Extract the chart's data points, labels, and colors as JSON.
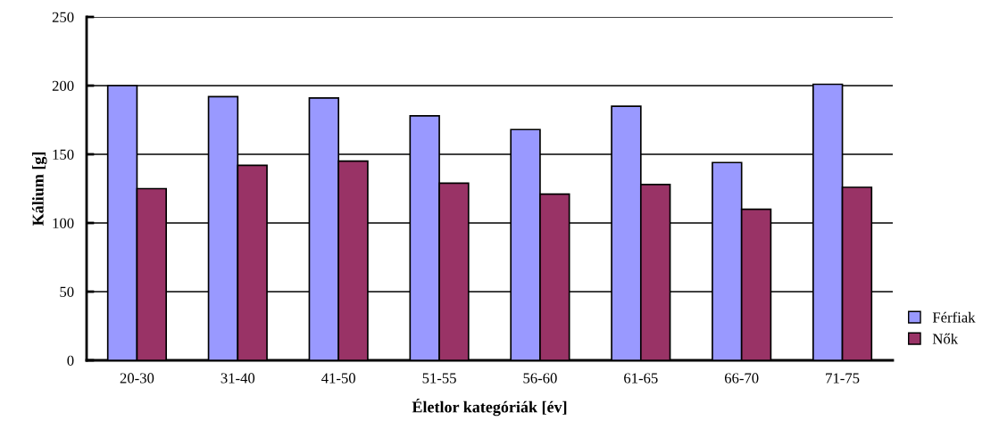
{
  "chart_data": {
    "type": "bar",
    "xlabel": "Életlor kategóriák [év]",
    "ylabel": "Kálium [g]",
    "categories": [
      "20-30",
      "31-40",
      "41-50",
      "51-55",
      "56-60",
      "61-65",
      "66-70",
      "71-75"
    ],
    "series": [
      {
        "name": "Férfiak",
        "color": "#9999ff",
        "values": [
          200,
          192,
          191,
          178,
          168,
          185,
          144,
          201
        ]
      },
      {
        "name": "Nők",
        "color": "#993366",
        "values": [
          125,
          142,
          145,
          129,
          121,
          128,
          110,
          126
        ]
      }
    ],
    "ylim": [
      0,
      250
    ],
    "yticks": [
      0,
      50,
      100,
      150,
      200,
      250
    ],
    "grid": "y",
    "legend": "bottom right"
  }
}
